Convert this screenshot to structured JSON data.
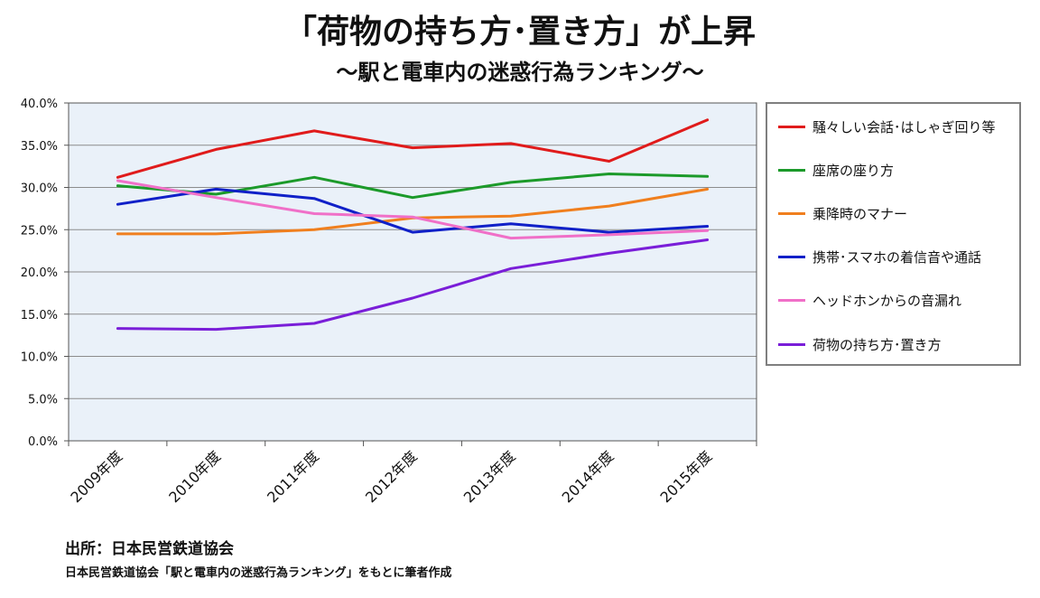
{
  "title": "「荷物の持ち方･置き方」が上昇",
  "subtitle": "～駅と電車内の迷惑行為ランキング～",
  "source": "出所：日本民営鉄道協会",
  "note": "日本民営鉄道協会「駅と電車内の迷惑行為ランキング」をもとに筆者作成",
  "chart_data": {
    "type": "line",
    "title": "「荷物の持ち方･置き方」が上昇",
    "subtitle": "～駅と電車内の迷惑行為ランキング～",
    "xlabel": "",
    "ylabel": "",
    "categories": [
      "2009年度",
      "2010年度",
      "2011年度",
      "2012年度",
      "2013年度",
      "2014年度",
      "2015年度"
    ],
    "ylim": [
      0,
      40
    ],
    "yticks": [
      0,
      5,
      10,
      15,
      20,
      25,
      30,
      35,
      40
    ],
    "ytick_labels": [
      "0.0%",
      "5.0%",
      "10.0%",
      "15.0%",
      "20.0%",
      "25.0%",
      "30.0%",
      "35.0%",
      "40.0%"
    ],
    "grid": true,
    "legend_position": "right",
    "series": [
      {
        "name": "騒々しい会話･はしゃぎ回り等",
        "color": "#e01b1b",
        "values": [
          31.2,
          34.5,
          36.7,
          34.7,
          35.2,
          33.1,
          38.0
        ]
      },
      {
        "name": "座席の座り方",
        "color": "#1c9a2a",
        "values": [
          30.2,
          29.2,
          31.2,
          28.8,
          30.6,
          31.6,
          31.3
        ]
      },
      {
        "name": "乗降時のマナー",
        "color": "#f07f1e",
        "values": [
          24.5,
          24.5,
          25.0,
          26.4,
          26.6,
          27.8,
          29.8
        ]
      },
      {
        "name": "携帯･スマホの着信音や通話",
        "color": "#1020c8",
        "values": [
          28.0,
          29.8,
          28.7,
          24.7,
          25.7,
          24.7,
          25.4
        ]
      },
      {
        "name": "ヘッドホンからの音漏れ",
        "color": "#f070c8",
        "values": [
          30.8,
          28.8,
          26.9,
          26.5,
          24.0,
          24.4,
          24.9
        ]
      },
      {
        "name": "荷物の持ち方･置き方",
        "color": "#7a1ed8",
        "values": [
          13.3,
          13.2,
          13.9,
          16.9,
          20.4,
          22.2,
          23.8
        ]
      }
    ]
  }
}
